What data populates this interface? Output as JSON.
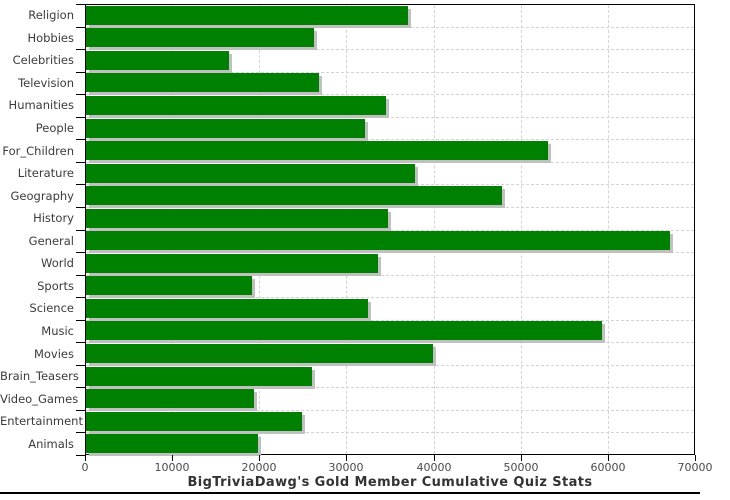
{
  "chart_data": {
    "type": "bar",
    "orientation": "horizontal",
    "title": "BigTriviaDawg's Gold Member Cumulative Quiz Stats",
    "categories": [
      "Religion",
      "Hobbies",
      "Celebrities",
      "Television",
      "Humanities",
      "People",
      "For_Children",
      "Literature",
      "Geography",
      "History",
      "General",
      "World",
      "Sports",
      "Science",
      "Music",
      "Movies",
      "Brain_Teasers",
      "Video_Games",
      "Entertainment",
      "Animals"
    ],
    "values": [
      37000,
      26200,
      16400,
      26700,
      34400,
      32000,
      53000,
      37700,
      47700,
      34700,
      67000,
      33500,
      19000,
      32400,
      59200,
      39800,
      25900,
      19300,
      24800,
      19700
    ],
    "xlim": [
      0,
      70000
    ],
    "x_ticks": [
      0,
      10000,
      20000,
      30000,
      40000,
      50000,
      60000,
      70000
    ],
    "xlabel": "",
    "ylabel": "",
    "grid": "dashed",
    "legend": "none",
    "colors": {
      "bar": "#008000",
      "bar_shadow": "#c0c0c0",
      "gridline": "#d4d4d4",
      "axis": "#000000",
      "label_text": "#3b3b3b",
      "title_text": "#333333"
    }
  }
}
